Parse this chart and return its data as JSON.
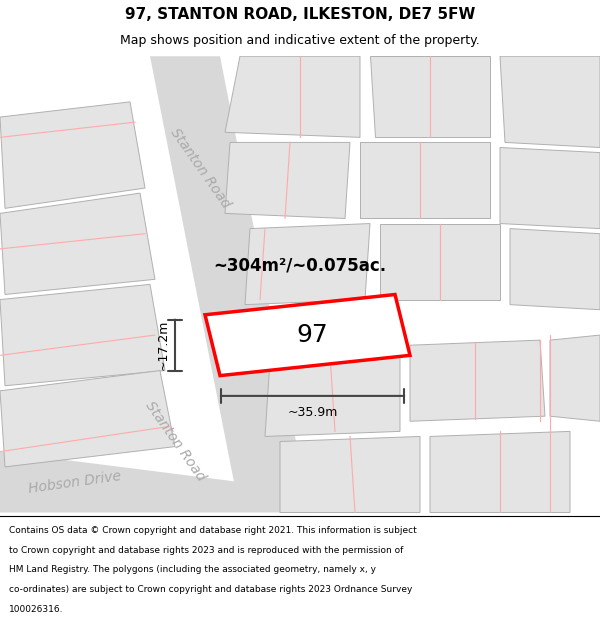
{
  "title": "97, STANTON ROAD, ILKESTON, DE7 5FW",
  "subtitle": "Map shows position and indicative extent of the property.",
  "footer_lines": [
    "Contains OS data © Crown copyright and database right 2021. This information is subject",
    "to Crown copyright and database rights 2023 and is reproduced with the permission of",
    "HM Land Registry. The polygons (including the associated geometry, namely x, y",
    "co-ordinates) are subject to Crown copyright and database rights 2023 Ordnance Survey",
    "100026316."
  ],
  "road_color": "#d8d8d8",
  "plot_fc": "#e4e4e4",
  "plot_ec": "#b0b0b0",
  "highlight_fc": "#ffffff",
  "highlight_ec": "#ff0000",
  "red_line_color": "#ffaaaa",
  "dim_color": "#444444",
  "road_label_color": "#aaaaaa",
  "label_97": "97",
  "area_label": "~304m²/~0.075ac.",
  "width_label": "~35.9m",
  "height_label": "~17.2m",
  "title_fontsize": 11,
  "subtitle_fontsize": 9,
  "footer_fontsize": 6.5,
  "label_fontsize": 18,
  "area_fontsize": 12,
  "dim_fontsize": 9,
  "road_label_fontsize": 10
}
